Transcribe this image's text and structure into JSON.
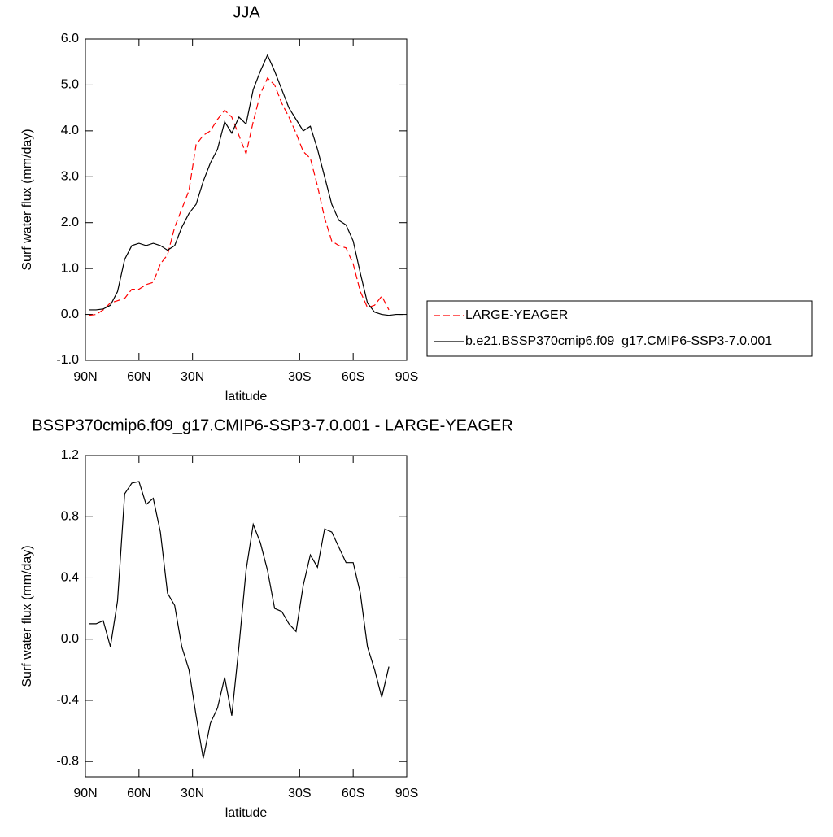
{
  "chart_data": [
    {
      "type": "line",
      "title": "JJA",
      "x_label": "latitude",
      "y_label": "Surf water flux (mm/day)",
      "xlim": [
        90,
        -90
      ],
      "ylim": [
        -1,
        6
      ],
      "xticks": [
        {
          "value": 90,
          "label": "90N"
        },
        {
          "value": 60,
          "label": "60N"
        },
        {
          "value": 30,
          "label": "30N"
        },
        {
          "value": -30,
          "label": "30S"
        },
        {
          "value": -60,
          "label": "60S"
        },
        {
          "value": -90,
          "label": "90S"
        }
      ],
      "yticks": [
        {
          "value": -1,
          "label": "-1.0"
        },
        {
          "value": 0,
          "label": "0.0"
        },
        {
          "value": 1,
          "label": "1.0"
        },
        {
          "value": 2,
          "label": "2.0"
        },
        {
          "value": 3,
          "label": "3.0"
        },
        {
          "value": 4,
          "label": "4.0"
        },
        {
          "value": 5,
          "label": "5.0"
        },
        {
          "value": 6,
          "label": "6.0"
        }
      ],
      "x": [
        88,
        84,
        80,
        76,
        72,
        68,
        64,
        60,
        56,
        52,
        48,
        44,
        40,
        36,
        32,
        28,
        24,
        20,
        16,
        12,
        8,
        4,
        0,
        -4,
        -8,
        -12,
        -16,
        -20,
        -24,
        -28,
        -32,
        -36,
        -40,
        -44,
        -48,
        -52,
        -56,
        -60,
        -64,
        -68,
        -72,
        -76,
        -80,
        -84,
        -88
      ],
      "series": [
        {
          "name": "LARGE-YEAGER",
          "color": "#ff0000",
          "dashed": true,
          "values": [
            -0.02,
            0.0,
            0.1,
            0.25,
            0.3,
            0.35,
            0.55,
            0.55,
            0.65,
            0.7,
            1.1,
            1.3,
            1.9,
            2.3,
            2.7,
            3.7,
            3.9,
            4.0,
            4.25,
            4.45,
            4.3,
            3.9,
            3.5,
            4.2,
            4.8,
            5.15,
            5.0,
            4.6,
            4.3,
            3.95,
            3.55,
            3.4,
            2.8,
            2.1,
            1.6,
            1.5,
            1.45,
            1.1,
            0.5,
            0.15,
            0.2,
            0.4,
            0.1,
            null,
            null
          ]
        },
        {
          "name": "b.e21.BSSP370cmip6.f09_g17.CMIP6-SSP3-7.0.001",
          "color": "#000000",
          "dashed": false,
          "values": [
            0.1,
            0.1,
            0.12,
            0.2,
            0.5,
            1.2,
            1.5,
            1.55,
            1.5,
            1.55,
            1.5,
            1.4,
            1.5,
            1.9,
            2.2,
            2.4,
            2.9,
            3.3,
            3.6,
            4.2,
            3.95,
            4.3,
            4.15,
            4.9,
            5.3,
            5.65,
            5.3,
            4.9,
            4.5,
            4.25,
            4.0,
            4.1,
            3.6,
            3.0,
            2.4,
            2.05,
            1.95,
            1.6,
            0.9,
            0.25,
            0.05,
            0.0,
            -0.02,
            0.0,
            0.0
          ]
        }
      ]
    },
    {
      "type": "line",
      "title": "BSSP370cmip6.f09_g17.CMIP6-SSP3-7.0.001 - LARGE-YEAGER",
      "x_label": "latitude",
      "y_label": "Surf water flux (mm/day)",
      "xlim": [
        90,
        -90
      ],
      "ylim": [
        -0.9,
        1.2
      ],
      "xticks": [
        {
          "value": 90,
          "label": "90N"
        },
        {
          "value": 60,
          "label": "60N"
        },
        {
          "value": 30,
          "label": "30N"
        },
        {
          "value": -30,
          "label": "30S"
        },
        {
          "value": -60,
          "label": "60S"
        },
        {
          "value": -90,
          "label": "90S"
        }
      ],
      "yticks": [
        {
          "value": -0.8,
          "label": "-0.8"
        },
        {
          "value": -0.4,
          "label": "-0.4"
        },
        {
          "value": 0,
          "label": "0.0"
        },
        {
          "value": 0.4,
          "label": "0.4"
        },
        {
          "value": 0.8,
          "label": "0.8"
        },
        {
          "value": 1.2,
          "label": "1.2"
        }
      ],
      "x": [
        88,
        84,
        80,
        76,
        72,
        68,
        64,
        60,
        56,
        52,
        48,
        44,
        40,
        36,
        32,
        28,
        24,
        20,
        16,
        12,
        8,
        4,
        0,
        -4,
        -8,
        -12,
        -16,
        -20,
        -24,
        -28,
        -32,
        -36,
        -40,
        -44,
        -48,
        -52,
        -56,
        -60,
        -64,
        -68,
        -72,
        -76,
        -80
      ],
      "series": [
        {
          "color": "#000000",
          "dashed": false,
          "values": [
            0.1,
            0.1,
            0.12,
            -0.05,
            0.25,
            0.95,
            1.02,
            1.03,
            0.88,
            0.92,
            0.7,
            0.3,
            0.22,
            -0.05,
            -0.2,
            -0.5,
            -0.78,
            -0.55,
            -0.45,
            -0.25,
            -0.5,
            -0.05,
            0.45,
            0.75,
            0.63,
            0.45,
            0.2,
            0.18,
            0.1,
            0.05,
            0.35,
            0.55,
            0.47,
            0.72,
            0.7,
            0.6,
            0.5,
            0.5,
            0.3,
            -0.05,
            -0.2,
            -0.38,
            -0.18
          ]
        }
      ]
    }
  ]
}
